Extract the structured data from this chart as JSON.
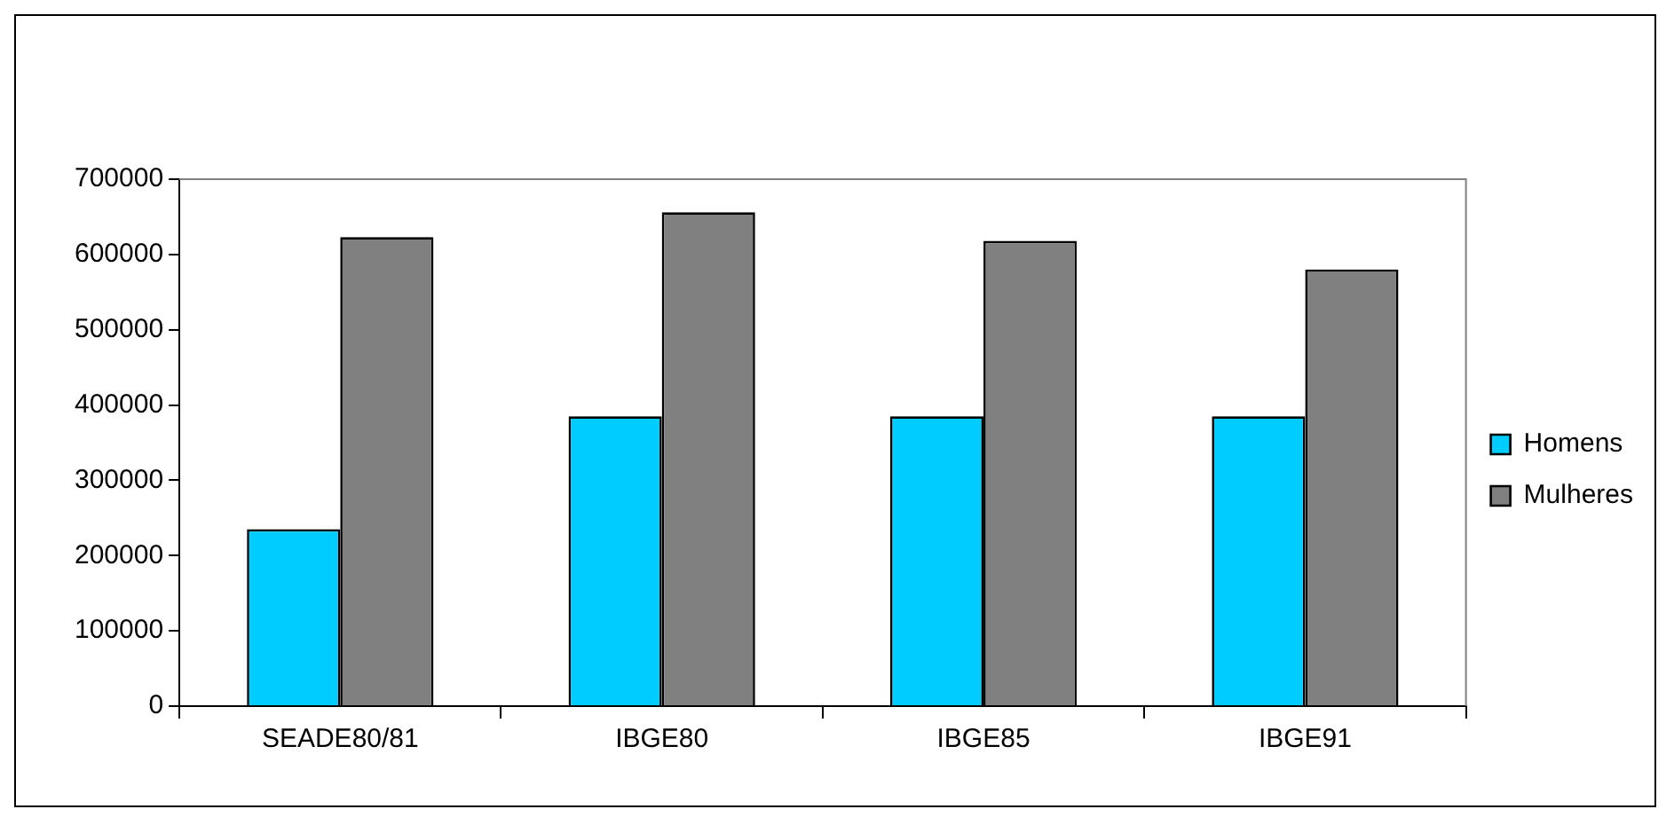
{
  "chart_data": {
    "type": "bar",
    "categories": [
      "SEADE80/81",
      "IBGE80",
      "IBGE85",
      "IBGE91"
    ],
    "series": [
      {
        "name": "Homens",
        "color": "#00ccff",
        "values": [
          235000,
          385000,
          385000,
          385000
        ]
      },
      {
        "name": "Mulheres",
        "color": "#808080",
        "values": [
          623000,
          656000,
          618000,
          580000
        ]
      }
    ],
    "ylim": [
      0,
      700000
    ],
    "yticks": [
      0,
      100000,
      200000,
      300000,
      400000,
      500000,
      600000,
      700000
    ],
    "grid": false,
    "legend": "right"
  }
}
